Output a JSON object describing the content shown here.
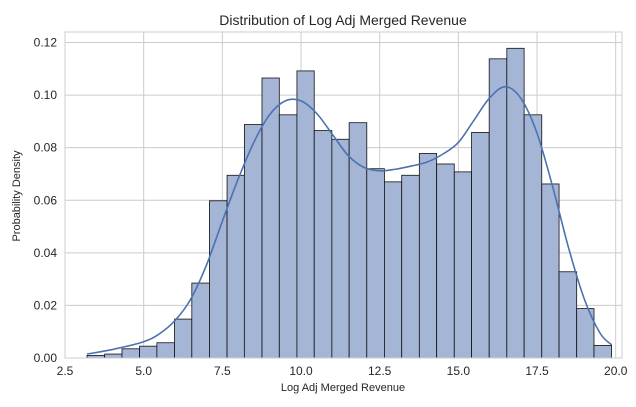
{
  "chart_data": {
    "type": "bar",
    "subtype": "histogram-with-kde",
    "title": "Distribution of Log Adj Merged Revenue",
    "xlabel": "Log Adj Merged Revenue",
    "ylabel": "Probability Density",
    "xlim": [
      2.5,
      20.2
    ],
    "ylim": [
      0,
      0.124
    ],
    "x_ticks": [
      2.5,
      5.0,
      7.5,
      10.0,
      12.5,
      15.0,
      17.5,
      20.0
    ],
    "x_tick_labels": [
      "2.5",
      "5.0",
      "7.5",
      "10.0",
      "12.5",
      "15.0",
      "17.5",
      "20.0"
    ],
    "y_ticks": [
      0.0,
      0.02,
      0.04,
      0.06,
      0.08,
      0.1,
      0.12
    ],
    "y_tick_labels": [
      "0.00",
      "0.02",
      "0.04",
      "0.06",
      "0.08",
      "0.10",
      "0.12"
    ],
    "grid": true,
    "bins": {
      "edges": [
        3.2,
        3.76,
        4.31,
        4.87,
        5.42,
        5.98,
        6.53,
        7.09,
        7.65,
        8.2,
        8.76,
        9.31,
        9.87,
        10.42,
        10.98,
        11.53,
        12.09,
        12.65,
        13.2,
        13.76,
        14.31,
        14.87,
        15.42,
        15.98,
        16.54,
        17.09,
        17.65,
        18.2,
        18.76,
        19.31,
        19.87
      ],
      "density": [
        0.001,
        0.0015,
        0.0035,
        0.0045,
        0.0058,
        0.0148,
        0.0285,
        0.0598,
        0.0695,
        0.0888,
        0.1065,
        0.0925,
        0.1092,
        0.0865,
        0.0832,
        0.0895,
        0.072,
        0.067,
        0.0695,
        0.0778,
        0.0738,
        0.0708,
        0.0858,
        0.1138,
        0.1178,
        0.0925,
        0.0662,
        0.0328,
        0.0188,
        0.0048
      ]
    },
    "kde": {
      "x": [
        3.2,
        4.0,
        5.0,
        5.5,
        6.0,
        6.5,
        7.0,
        7.5,
        8.0,
        8.5,
        9.0,
        9.5,
        10.0,
        10.5,
        11.0,
        11.5,
        12.0,
        12.5,
        13.0,
        13.5,
        14.0,
        14.5,
        15.0,
        15.5,
        16.0,
        16.5,
        17.0,
        17.5,
        18.0,
        18.5,
        19.0,
        19.5,
        19.87
      ],
      "y": [
        0.0015,
        0.0032,
        0.0062,
        0.0092,
        0.0143,
        0.0225,
        0.0355,
        0.052,
        0.068,
        0.082,
        0.0925,
        0.0978,
        0.0978,
        0.093,
        0.085,
        0.077,
        0.0725,
        0.0712,
        0.0718,
        0.073,
        0.0745,
        0.0775,
        0.082,
        0.0905,
        0.099,
        0.1032,
        0.0985,
        0.0855,
        0.065,
        0.042,
        0.0225,
        0.0095,
        0.005
      ]
    },
    "colors": {
      "bar_fill": "#a4b5d6",
      "bar_edge": "#111111",
      "kde_line": "#4c72b0",
      "grid": "#cccccc",
      "frame": "#cccccc"
    }
  }
}
